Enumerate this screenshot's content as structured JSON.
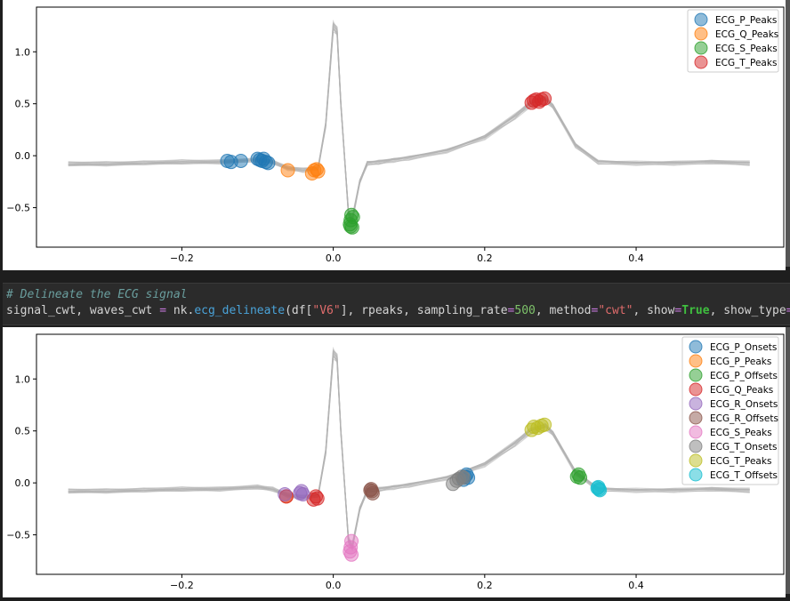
{
  "plots": [
    {
      "legend": [
        {
          "label": "ECG_P_Peaks",
          "color": "#1f77b4"
        },
        {
          "label": "ECG_Q_Peaks",
          "color": "#ff7f0e"
        },
        {
          "label": "ECG_S_Peaks",
          "color": "#2ca02c"
        },
        {
          "label": "ECG_T_Peaks",
          "color": "#d62728"
        }
      ]
    },
    {
      "legend": [
        {
          "label": "ECG_P_Onsets",
          "color": "#1f77b4"
        },
        {
          "label": "ECG_P_Peaks",
          "color": "#ff7f0e"
        },
        {
          "label": "ECG_P_Offsets",
          "color": "#2ca02c"
        },
        {
          "label": "ECG_Q_Peaks",
          "color": "#d62728"
        },
        {
          "label": "ECG_R_Onsets",
          "color": "#9467bd"
        },
        {
          "label": "ECG_R_Offsets",
          "color": "#8c564b"
        },
        {
          "label": "ECG_S_Peaks",
          "color": "#e377c2"
        },
        {
          "label": "ECG_T_Onsets",
          "color": "#7f7f7f"
        },
        {
          "label": "ECG_T_Peaks",
          "color": "#bcbd22"
        },
        {
          "label": "ECG_T_Offsets",
          "color": "#17becf"
        }
      ]
    }
  ],
  "code": {
    "comment": "# Delineate the ECG signal",
    "t1": "signal_cwt, waves_cwt ",
    "eq1": "=",
    "t2": " nk.",
    "fn": "ecg_delineate",
    "t3": "(df[",
    "s1": "\"V6\"",
    "t4": "], rpeaks, sampling_rate",
    "eq2": "=",
    "n1": "500",
    "t5": ", method",
    "eq3": "=",
    "s2": "\"cwt\"",
    "t6": ", show",
    "eq4": "=",
    "k1": "True",
    "t7": ", show_type",
    "eq5": "="
  },
  "chart_data": [
    {
      "type": "line",
      "x": [
        -0.35,
        -0.3,
        -0.25,
        -0.2,
        -0.15,
        -0.1,
        -0.08,
        -0.06,
        -0.04,
        -0.02,
        -0.01,
        0.0,
        0.005,
        0.01,
        0.02,
        0.025,
        0.035,
        0.045,
        0.06,
        0.08,
        0.1,
        0.15,
        0.2,
        0.24,
        0.26,
        0.28,
        0.29,
        0.32,
        0.35,
        0.4,
        0.45,
        0.5,
        0.55
      ],
      "ylim": [
        -0.88,
        1.43
      ],
      "xlim": [
        -0.392,
        0.595
      ],
      "xticks": [
        -0.2,
        0.0,
        0.2,
        0.4
      ],
      "yticks": [
        -0.5,
        0.0,
        0.5,
        1.0
      ],
      "xtick_labels": [
        "−0.2",
        "0.0",
        "0.2",
        "0.4"
      ],
      "ytick_labels": [
        "−0.5",
        "0.0",
        "0.5",
        "1.0"
      ],
      "legend_position": "top-right",
      "series": [
        {
          "name": "ECG_P_Peaks",
          "points": [
            [
              -0.14,
              -0.05
            ],
            [
              -0.135,
              -0.06
            ],
            [
              -0.122,
              -0.05
            ],
            [
              -0.1,
              -0.03
            ],
            [
              -0.097,
              -0.04
            ],
            [
              -0.094,
              -0.05
            ],
            [
              -0.092,
              -0.03
            ],
            [
              -0.089,
              -0.06
            ],
            [
              -0.086,
              -0.07
            ]
          ]
        },
        {
          "name": "ECG_Q_Peaks",
          "points": [
            [
              -0.06,
              -0.14
            ],
            [
              -0.028,
              -0.17
            ],
            [
              -0.025,
              -0.14
            ],
            [
              -0.022,
              -0.13
            ],
            [
              -0.02,
              -0.15
            ]
          ]
        },
        {
          "name": "ECG_S_Peaks",
          "points": [
            [
              0.024,
              -0.57
            ],
            [
              0.023,
              -0.62
            ],
            [
              0.022,
              -0.66
            ],
            [
              0.023,
              -0.68
            ],
            [
              0.025,
              -0.69
            ],
            [
              0.026,
              -0.59
            ]
          ]
        },
        {
          "name": "ECG_T_Peaks",
          "points": [
            [
              0.262,
              0.51
            ],
            [
              0.265,
              0.53
            ],
            [
              0.268,
              0.54
            ],
            [
              0.272,
              0.52
            ],
            [
              0.275,
              0.54
            ],
            [
              0.279,
              0.55
            ]
          ]
        }
      ]
    },
    {
      "type": "line",
      "x": [
        -0.35,
        -0.3,
        -0.25,
        -0.2,
        -0.15,
        -0.1,
        -0.08,
        -0.06,
        -0.04,
        -0.02,
        -0.01,
        0.0,
        0.005,
        0.01,
        0.02,
        0.025,
        0.035,
        0.045,
        0.06,
        0.08,
        0.1,
        0.15,
        0.2,
        0.24,
        0.26,
        0.28,
        0.29,
        0.32,
        0.35,
        0.4,
        0.45,
        0.5,
        0.55
      ],
      "ylim": [
        -0.88,
        1.43
      ],
      "xlim": [
        -0.392,
        0.595
      ],
      "xticks": [
        -0.2,
        0.0,
        0.2,
        0.4
      ],
      "yticks": [
        -0.5,
        0.0,
        0.5,
        1.0
      ],
      "xtick_labels": [
        "−0.2",
        "0.0",
        "0.2",
        "0.4"
      ],
      "ytick_labels": [
        "−0.5",
        "0.0",
        "0.5",
        "1.0"
      ],
      "legend_position": "top-right",
      "series": [
        {
          "name": "ECG_P_Onsets",
          "points": [
            [
              0.174,
              0.06
            ],
            [
              0.176,
              0.08
            ],
            [
              0.178,
              0.05
            ],
            [
              0.172,
              0.03
            ]
          ]
        },
        {
          "name": "ECG_P_Peaks",
          "points": [
            [
              -0.062,
              -0.13
            ]
          ]
        },
        {
          "name": "ECG_P_Offsets",
          "points": [
            [
              0.322,
              0.06
            ],
            [
              0.324,
              0.08
            ],
            [
              0.326,
              0.05
            ]
          ]
        },
        {
          "name": "ECG_Q_Peaks",
          "points": [
            [
              -0.062,
              -0.13
            ],
            [
              -0.026,
              -0.16
            ],
            [
              -0.023,
              -0.13
            ],
            [
              -0.021,
              -0.15
            ]
          ]
        },
        {
          "name": "ECG_R_Onsets",
          "points": [
            [
              -0.064,
              -0.11
            ],
            [
              -0.044,
              -0.1
            ],
            [
              -0.042,
              -0.08
            ],
            [
              -0.04,
              -0.11
            ]
          ]
        },
        {
          "name": "ECG_R_Offsets",
          "points": [
            [
              0.05,
              -0.06
            ],
            [
              0.051,
              -0.08
            ],
            [
              0.052,
              -0.1
            ],
            [
              0.049,
              -0.07
            ]
          ]
        },
        {
          "name": "ECG_S_Peaks",
          "points": [
            [
              0.024,
              -0.56
            ],
            [
              0.023,
              -0.62
            ],
            [
              0.022,
              -0.66
            ],
            [
              0.024,
              -0.69
            ]
          ]
        },
        {
          "name": "ECG_T_Onsets",
          "points": [
            [
              0.158,
              -0.01
            ],
            [
              0.163,
              0.02
            ],
            [
              0.166,
              0.04
            ],
            [
              0.17,
              0.06
            ],
            [
              0.172,
              0.05
            ]
          ]
        },
        {
          "name": "ECG_T_Peaks",
          "points": [
            [
              0.262,
              0.51
            ],
            [
              0.265,
              0.54
            ],
            [
              0.27,
              0.53
            ],
            [
              0.275,
              0.55
            ],
            [
              0.279,
              0.56
            ]
          ]
        },
        {
          "name": "ECG_T_Offsets",
          "points": [
            [
              0.35,
              -0.04
            ],
            [
              0.351,
              -0.06
            ],
            [
              0.352,
              -0.07
            ],
            [
              0.349,
              -0.05
            ]
          ]
        }
      ]
    }
  ]
}
